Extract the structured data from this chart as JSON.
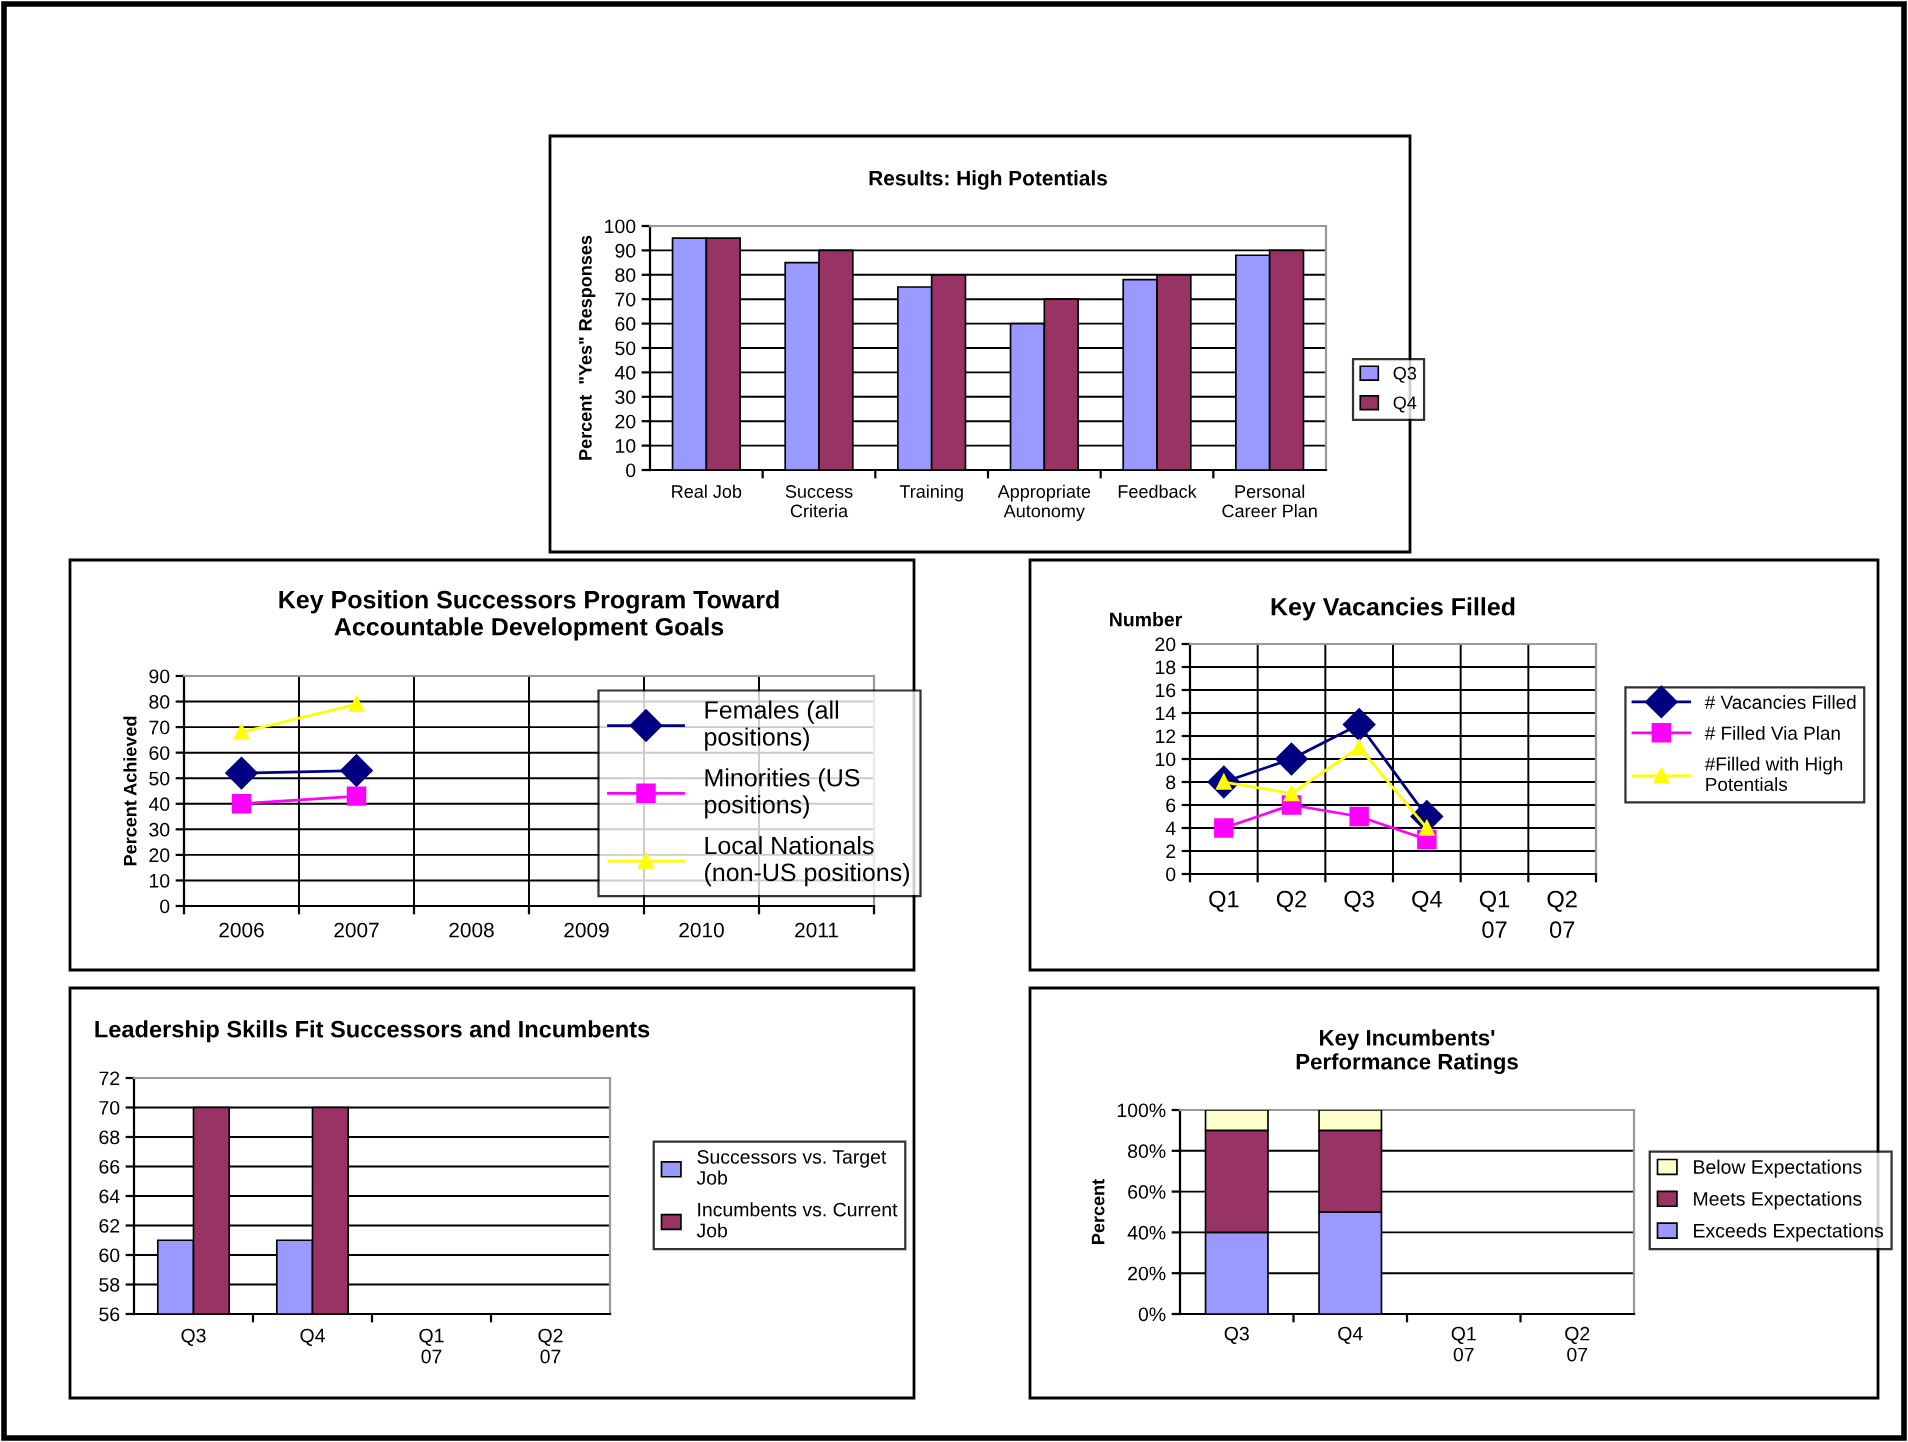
{
  "chart_data": [
    {
      "type": "bar",
      "title": "Results: High Potentials",
      "ylabel": "Percent  \"Yes\" Responses",
      "categories": [
        "Real Job",
        "Success\nCriteria",
        "Training",
        "Appropriate\nAutonomy",
        "Feedback",
        "Personal\nCareer Plan"
      ],
      "series": [
        {
          "name": "Q3",
          "color": "#9999ff",
          "values": [
            95,
            85,
            75,
            60,
            78,
            88
          ]
        },
        {
          "name": "Q4",
          "color": "#993366",
          "values": [
            95,
            90,
            80,
            70,
            80,
            90
          ]
        }
      ],
      "ylim": [
        0,
        100
      ],
      "yticks": [
        0,
        10,
        20,
        30,
        40,
        50,
        60,
        70,
        80,
        90,
        100
      ],
      "grid": "y",
      "legend": "right"
    },
    {
      "type": "line",
      "title": "Key Position Successors Program Toward\nAccountable Development Goals",
      "ylabel": "Percent Achieved",
      "categories": [
        "2006",
        "2007",
        "2008",
        "2009",
        "2010",
        "2011"
      ],
      "series": [
        {
          "name": "Females (all\npositions)",
          "color": "#000080",
          "marker": "diamond",
          "values": [
            52,
            53,
            null,
            null,
            null,
            null
          ]
        },
        {
          "name": "Minorities (US\npositions)",
          "color": "#ff00ff",
          "marker": "square",
          "values": [
            40,
            43,
            null,
            null,
            null,
            null
          ]
        },
        {
          "name": "Local Nationals\n(non-US positions)",
          "color": "#ffff00",
          "marker": "triangle",
          "values": [
            68,
            79,
            null,
            null,
            null,
            null
          ]
        }
      ],
      "ylim": [
        0,
        90
      ],
      "yticks": [
        0,
        10,
        20,
        30,
        40,
        50,
        60,
        70,
        80,
        90
      ],
      "grid": true,
      "legend": "right"
    },
    {
      "type": "line",
      "title": "Key Vacancies Filled",
      "ylabel": "Number",
      "categories": [
        "Q1",
        "Q2",
        "Q3",
        "Q4",
        "Q1\n07",
        "Q2\n07"
      ],
      "series": [
        {
          "name": "# Vacancies Filled",
          "color": "#000080",
          "marker": "diamond",
          "values": [
            8,
            10,
            13,
            5,
            null,
            null
          ]
        },
        {
          "name": "# Filled Via Plan",
          "color": "#ff00ff",
          "marker": "square",
          "values": [
            4,
            6,
            5,
            3,
            null,
            null
          ]
        },
        {
          "name": "#Filled with High\nPotentials",
          "color": "#ffff00",
          "marker": "triangle",
          "values": [
            8,
            7,
            11,
            4,
            null,
            null
          ]
        }
      ],
      "ylim": [
        0,
        20
      ],
      "yticks": [
        0,
        2,
        4,
        6,
        8,
        10,
        12,
        14,
        16,
        18,
        20
      ],
      "grid": true,
      "legend": "right"
    },
    {
      "type": "bar",
      "title": "Leadership Skills Fit Successors and Incumbents",
      "categories": [
        "Q3",
        "Q4",
        "Q1\n07",
        "Q2\n07"
      ],
      "series": [
        {
          "name": "Successors vs. Target\nJob",
          "color": "#9999ff",
          "values": [
            61,
            61,
            null,
            null
          ]
        },
        {
          "name": "Incumbents vs. Current\nJob",
          "color": "#993366",
          "values": [
            70,
            70,
            null,
            null
          ]
        }
      ],
      "ylim": [
        56,
        72
      ],
      "yticks": [
        56,
        58,
        60,
        62,
        64,
        66,
        68,
        70,
        72
      ],
      "grid": "y",
      "legend": "right"
    },
    {
      "type": "bar",
      "stacked": true,
      "title": "Key Incumbents'\nPerformance Ratings",
      "ylabel": "Percent",
      "categories": [
        "Q3",
        "Q4",
        "Q1\n07",
        "Q2\n07"
      ],
      "series": [
        {
          "name": "Exceeds Expectations",
          "color": "#9999ff",
          "values": [
            40,
            50,
            null,
            null
          ]
        },
        {
          "name": "Meets Expectations",
          "color": "#993366",
          "values": [
            50,
            40,
            null,
            null
          ]
        },
        {
          "name": "Below Expectations",
          "color": "#ffffcc",
          "values": [
            10,
            10,
            null,
            null
          ]
        }
      ],
      "ylim": [
        0,
        100
      ],
      "yticks": [
        {
          "value": 0,
          "label": "0%"
        },
        {
          "value": 20,
          "label": "20%"
        },
        {
          "value": 40,
          "label": "40%"
        },
        {
          "value": 60,
          "label": "60%"
        },
        {
          "value": 80,
          "label": "80%"
        },
        {
          "value": 100,
          "label": "100%"
        }
      ],
      "grid": "y",
      "legend": "right"
    }
  ]
}
